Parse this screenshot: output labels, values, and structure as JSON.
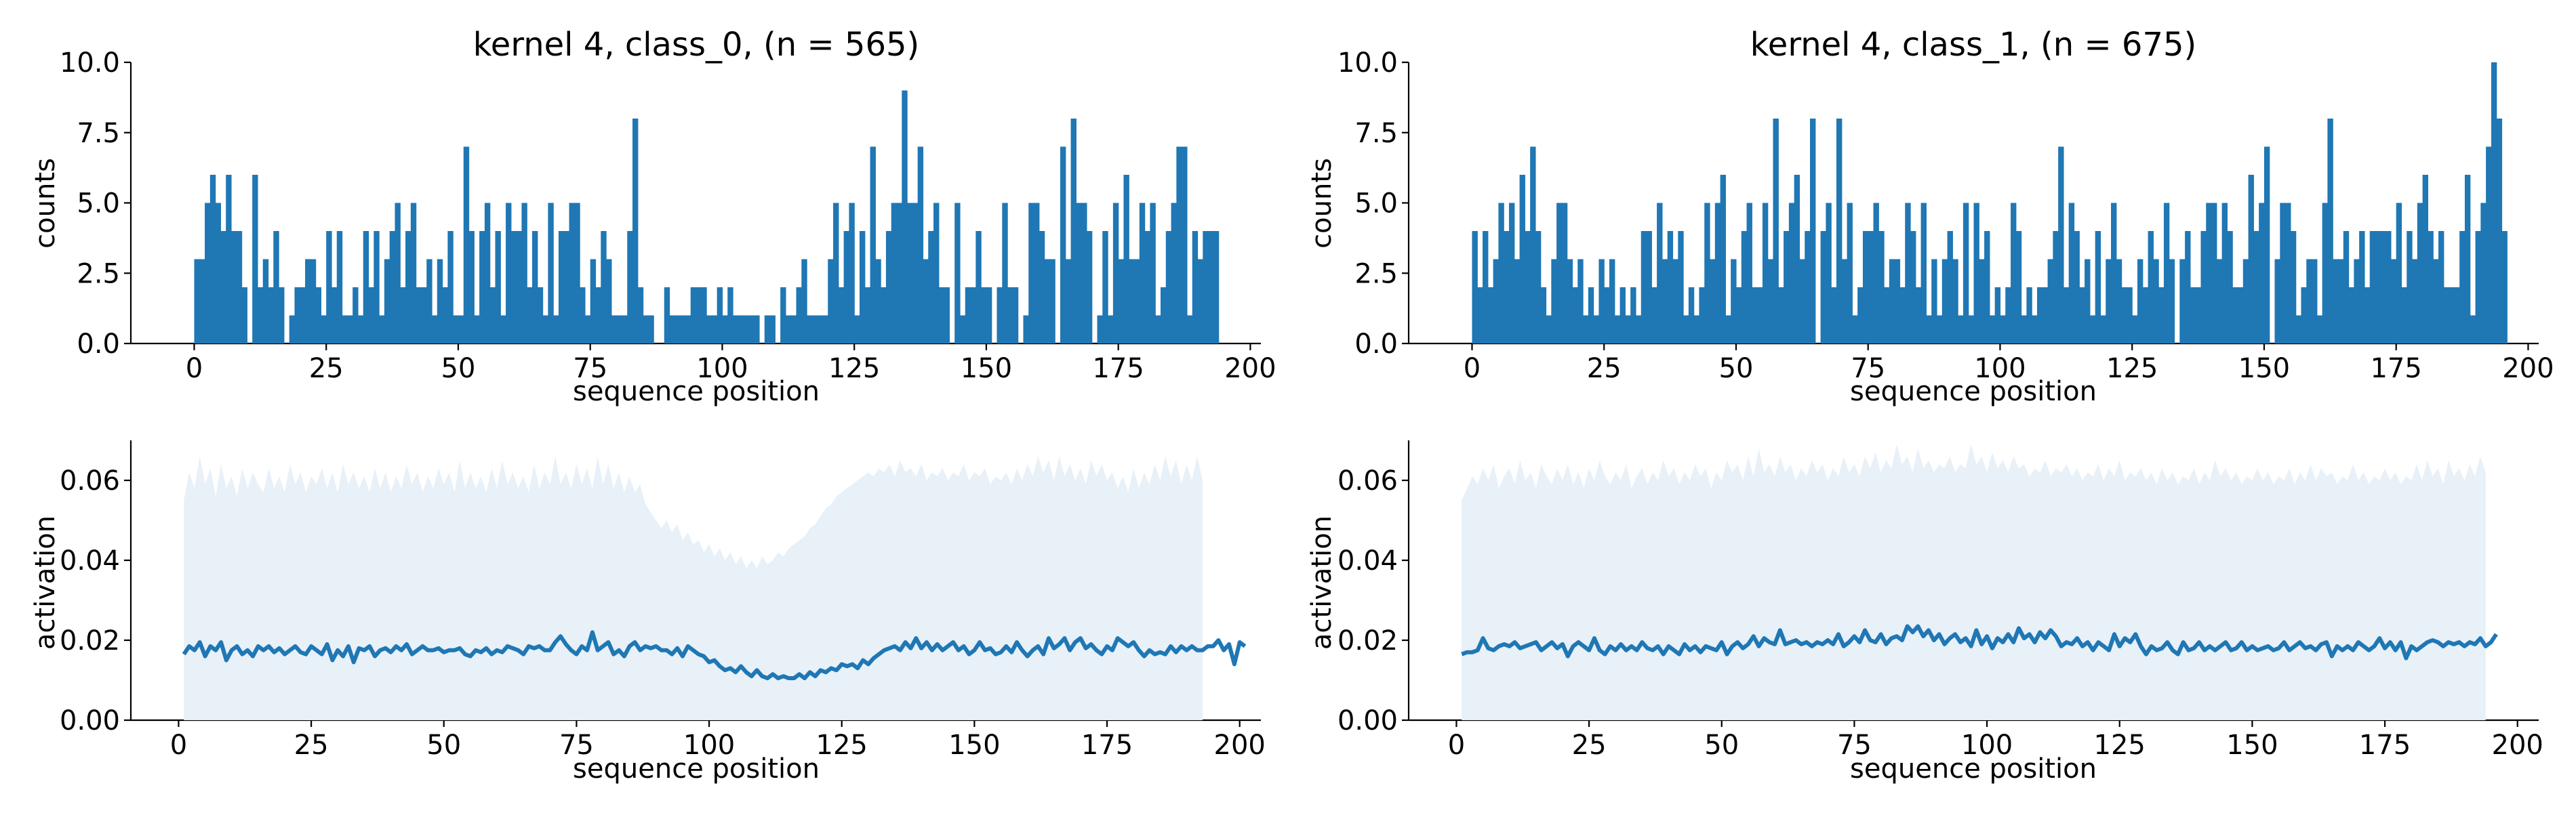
{
  "colors": {
    "bar": "#1f77b4",
    "line": "#1f77b4",
    "band": "#e8f0f8",
    "axis": "#000000"
  },
  "chart_data": [
    {
      "type": "bar",
      "title": "kernel 4, class_0, (n = 565)",
      "xlabel": "sequence position",
      "ylabel": "counts",
      "xlim": [
        -12,
        202
      ],
      "ylim": [
        0,
        10
      ],
      "xticks": [
        "0",
        "25",
        "50",
        "75",
        "100",
        "125",
        "150",
        "175",
        "200"
      ],
      "yticks": [
        "0.0",
        "2.5",
        "5.0",
        "7.5",
        "10.0"
      ],
      "x_start": 0,
      "values": [
        3,
        3,
        5,
        6,
        5,
        4,
        6,
        4,
        4,
        2,
        0,
        6,
        2,
        3,
        2,
        4,
        2,
        0,
        1,
        2,
        2,
        3,
        3,
        2,
        1,
        4,
        2,
        4,
        1,
        1,
        2,
        1,
        4,
        2,
        4,
        1,
        3,
        4,
        5,
        2,
        4,
        5,
        2,
        2,
        3,
        1,
        3,
        2,
        4,
        1,
        1,
        7,
        4,
        1,
        4,
        5,
        2,
        4,
        1,
        5,
        4,
        4,
        5,
        2,
        4,
        2,
        1,
        5,
        1,
        4,
        4,
        5,
        5,
        2,
        1,
        3,
        2,
        4,
        3,
        1,
        1,
        1,
        4,
        8,
        2,
        1,
        1,
        0,
        0,
        2,
        1,
        1,
        1,
        1,
        2,
        2,
        2,
        1,
        1,
        2,
        1,
        2,
        1,
        1,
        1,
        1,
        1,
        0,
        1,
        1,
        0,
        2,
        1,
        1,
        2,
        3,
        1,
        1,
        1,
        1,
        3,
        5,
        2,
        4,
        5,
        1,
        4,
        2,
        7,
        3,
        2,
        4,
        5,
        5,
        9,
        5,
        5,
        7,
        3,
        4,
        5,
        2,
        2,
        0,
        5,
        1,
        2,
        2,
        4,
        2,
        2,
        0,
        2,
        5,
        2,
        2,
        0,
        1,
        5,
        5,
        4,
        3,
        3,
        0,
        7,
        3,
        8,
        5,
        5,
        4,
        0,
        1,
        4,
        1,
        5,
        3,
        6,
        3,
        3,
        5,
        4,
        5,
        1,
        2,
        4,
        5,
        7,
        7,
        1,
        4,
        3,
        4,
        4,
        4
      ],
      "mean_activation": [
        0.0165,
        0.0185,
        0.0175,
        0.0195,
        0.016,
        0.0185,
        0.0175,
        0.0195,
        0.015,
        0.0175,
        0.0185,
        0.0165,
        0.0175,
        0.016,
        0.0185,
        0.0175,
        0.0185,
        0.017,
        0.018,
        0.0165,
        0.0175,
        0.0185,
        0.017,
        0.0165,
        0.0185,
        0.0175,
        0.0165,
        0.019,
        0.015,
        0.0175,
        0.016,
        0.0185,
        0.0145,
        0.018,
        0.0175,
        0.0185,
        0.016,
        0.0175,
        0.018,
        0.017,
        0.0185,
        0.0175,
        0.019,
        0.0165,
        0.0175,
        0.0185,
        0.0175,
        0.0175,
        0.018,
        0.017,
        0.0175,
        0.0175,
        0.018,
        0.0165,
        0.016,
        0.0175,
        0.017,
        0.018,
        0.0165,
        0.0175,
        0.017,
        0.0185,
        0.018,
        0.0175,
        0.0165,
        0.0185,
        0.018,
        0.0185,
        0.0175,
        0.0175,
        0.0195,
        0.021,
        0.019,
        0.0175,
        0.0165,
        0.0185,
        0.0175,
        0.022,
        0.0175,
        0.0185,
        0.0195,
        0.0165,
        0.0175,
        0.016,
        0.0185,
        0.0195,
        0.0175,
        0.0185,
        0.018,
        0.0185,
        0.0175,
        0.0175,
        0.0165,
        0.018,
        0.016,
        0.0185,
        0.0175,
        0.0165,
        0.016,
        0.0145,
        0.015,
        0.0135,
        0.0125,
        0.013,
        0.012,
        0.0135,
        0.012,
        0.011,
        0.0125,
        0.011,
        0.0105,
        0.0115,
        0.0105,
        0.011,
        0.0105,
        0.0105,
        0.0115,
        0.0105,
        0.012,
        0.011,
        0.0125,
        0.012,
        0.013,
        0.0125,
        0.014,
        0.0135,
        0.014,
        0.013,
        0.015,
        0.014,
        0.0155,
        0.0165,
        0.0175,
        0.018,
        0.0185,
        0.0175,
        0.0195,
        0.018,
        0.0205,
        0.018,
        0.0195,
        0.0175,
        0.019,
        0.0175,
        0.0185,
        0.0195,
        0.0175,
        0.0185,
        0.0165,
        0.0175,
        0.0195,
        0.0175,
        0.018,
        0.0165,
        0.017,
        0.0185,
        0.017,
        0.0195,
        0.0175,
        0.016,
        0.0175,
        0.0185,
        0.0165,
        0.0205,
        0.018,
        0.019,
        0.0205,
        0.0175,
        0.0195,
        0.0205,
        0.018,
        0.019,
        0.0175,
        0.0165,
        0.0185,
        0.0175,
        0.0205,
        0.0195,
        0.0185,
        0.0195,
        0.0175,
        0.016,
        0.0175,
        0.0165,
        0.017,
        0.0165,
        0.0185,
        0.017,
        0.0185,
        0.0175,
        0.0185,
        0.0175,
        0.0175,
        0.0185,
        0.0185,
        0.02,
        0.0175,
        0.019,
        0.014,
        0.0195,
        0.0185
      ],
      "upper_band": [
        0.055,
        0.062,
        0.058,
        0.066,
        0.059,
        0.063,
        0.056,
        0.064,
        0.058,
        0.061,
        0.056,
        0.063,
        0.058,
        0.062,
        0.059,
        0.057,
        0.063,
        0.058,
        0.061,
        0.057,
        0.064,
        0.059,
        0.062,
        0.057,
        0.061,
        0.059,
        0.063,
        0.058,
        0.062,
        0.057,
        0.064,
        0.059,
        0.062,
        0.058,
        0.061,
        0.057,
        0.063,
        0.058,
        0.062,
        0.057,
        0.061,
        0.058,
        0.064,
        0.059,
        0.062,
        0.057,
        0.061,
        0.058,
        0.063,
        0.059,
        0.062,
        0.057,
        0.065,
        0.058,
        0.062,
        0.058,
        0.061,
        0.057,
        0.063,
        0.058,
        0.065,
        0.059,
        0.062,
        0.058,
        0.061,
        0.057,
        0.064,
        0.058,
        0.062,
        0.059,
        0.066,
        0.059,
        0.062,
        0.058,
        0.064,
        0.059,
        0.063,
        0.058,
        0.066,
        0.059,
        0.064,
        0.058,
        0.062,
        0.057,
        0.061,
        0.057,
        0.059,
        0.054,
        0.052,
        0.05,
        0.048,
        0.05,
        0.047,
        0.049,
        0.045,
        0.047,
        0.044,
        0.045,
        0.042,
        0.044,
        0.041,
        0.043,
        0.04,
        0.042,
        0.039,
        0.041,
        0.038,
        0.04,
        0.038,
        0.041,
        0.039,
        0.04,
        0.042,
        0.041,
        0.043,
        0.044,
        0.045,
        0.046,
        0.048,
        0.049,
        0.051,
        0.053,
        0.054,
        0.056,
        0.057,
        0.058,
        0.059,
        0.06,
        0.061,
        0.062,
        0.061,
        0.063,
        0.062,
        0.064,
        0.061,
        0.065,
        0.062,
        0.063,
        0.061,
        0.064,
        0.06,
        0.062,
        0.061,
        0.063,
        0.06,
        0.062,
        0.061,
        0.064,
        0.06,
        0.062,
        0.061,
        0.063,
        0.059,
        0.061,
        0.06,
        0.062,
        0.059,
        0.063,
        0.06,
        0.064,
        0.061,
        0.066,
        0.062,
        0.065,
        0.06,
        0.066,
        0.061,
        0.064,
        0.06,
        0.063,
        0.059,
        0.065,
        0.061,
        0.064,
        0.06,
        0.062,
        0.058,
        0.061,
        0.057,
        0.063,
        0.058,
        0.062,
        0.059,
        0.064,
        0.06,
        0.066,
        0.061,
        0.065,
        0.059,
        0.064,
        0.06,
        0.066,
        0.06
      ],
      "activation_axis": {
        "ylabel": "activation",
        "xlabel": "sequence position",
        "xlim": [
          -9,
          204
        ],
        "ylim": [
          0,
          0.07
        ],
        "xticks": [
          "0",
          "25",
          "50",
          "75",
          "100",
          "125",
          "150",
          "175",
          "200"
        ],
        "yticks": [
          "0.00",
          "0.02",
          "0.04",
          "0.06"
        ],
        "x_start": 1
      }
    },
    {
      "type": "bar",
      "title": "kernel 4, class_1, (n = 675)",
      "xlabel": "sequence position",
      "ylabel": "counts",
      "xlim": [
        -12,
        202
      ],
      "ylim": [
        0,
        10
      ],
      "xticks": [
        "0",
        "25",
        "50",
        "75",
        "100",
        "125",
        "150",
        "175",
        "200"
      ],
      "yticks": [
        "0.0",
        "2.5",
        "5.0",
        "7.5",
        "10.0"
      ],
      "x_start": 0,
      "values": [
        4,
        2,
        4,
        2,
        3,
        5,
        4,
        5,
        3,
        6,
        4,
        7,
        4,
        2,
        1,
        3,
        5,
        5,
        3,
        2,
        3,
        1,
        2,
        1,
        3,
        2,
        3,
        1,
        2,
        1,
        2,
        1,
        4,
        4,
        2,
        5,
        3,
        4,
        3,
        4,
        1,
        2,
        1,
        2,
        5,
        3,
        5,
        6,
        1,
        3,
        2,
        4,
        5,
        2,
        2,
        5,
        3,
        8,
        2,
        4,
        5,
        6,
        3,
        4,
        8,
        0,
        4,
        5,
        2,
        8,
        3,
        5,
        1,
        2,
        4,
        4,
        5,
        4,
        2,
        3,
        3,
        2,
        5,
        4,
        2,
        5,
        1,
        3,
        1,
        3,
        4,
        3,
        1,
        5,
        1,
        5,
        3,
        4,
        1,
        2,
        1,
        2,
        5,
        4,
        1,
        2,
        1,
        2,
        2,
        3,
        4,
        7,
        2,
        5,
        4,
        2,
        3,
        1,
        4,
        1,
        3,
        5,
        3,
        2,
        2,
        1,
        3,
        2,
        4,
        3,
        2,
        5,
        3,
        0,
        3,
        4,
        2,
        2,
        4,
        5,
        5,
        3,
        5,
        4,
        2,
        2,
        3,
        6,
        4,
        5,
        7,
        0,
        3,
        5,
        5,
        4,
        1,
        2,
        3,
        3,
        1,
        5,
        8,
        3,
        3,
        4,
        2,
        3,
        4,
        2,
        4,
        4,
        4,
        4,
        3,
        5,
        2,
        4,
        3,
        5,
        6,
        4,
        3,
        4,
        2,
        2,
        2,
        4,
        6,
        1,
        4,
        5,
        7,
        10,
        8,
        4
      ],
      "mean_activation": [
        0.0165,
        0.017,
        0.017,
        0.0175,
        0.0205,
        0.018,
        0.0175,
        0.0185,
        0.019,
        0.0185,
        0.0195,
        0.018,
        0.0185,
        0.019,
        0.0195,
        0.0175,
        0.0185,
        0.0195,
        0.018,
        0.019,
        0.016,
        0.0185,
        0.0195,
        0.0185,
        0.0175,
        0.0205,
        0.0175,
        0.0165,
        0.0185,
        0.0175,
        0.019,
        0.0175,
        0.0185,
        0.0175,
        0.0195,
        0.018,
        0.0175,
        0.0185,
        0.0165,
        0.0185,
        0.0175,
        0.0165,
        0.019,
        0.0175,
        0.0185,
        0.017,
        0.0185,
        0.018,
        0.0175,
        0.0195,
        0.0165,
        0.0185,
        0.0195,
        0.018,
        0.019,
        0.021,
        0.0185,
        0.0205,
        0.0195,
        0.019,
        0.0225,
        0.019,
        0.0195,
        0.02,
        0.019,
        0.0195,
        0.0185,
        0.0195,
        0.019,
        0.02,
        0.019,
        0.0215,
        0.0185,
        0.0195,
        0.021,
        0.0195,
        0.0225,
        0.02,
        0.0195,
        0.0215,
        0.019,
        0.0205,
        0.021,
        0.02,
        0.0235,
        0.022,
        0.0235,
        0.021,
        0.0225,
        0.02,
        0.0215,
        0.019,
        0.0205,
        0.0215,
        0.0195,
        0.0205,
        0.0185,
        0.0225,
        0.019,
        0.021,
        0.018,
        0.0205,
        0.0195,
        0.0215,
        0.0195,
        0.023,
        0.0205,
        0.0215,
        0.0195,
        0.022,
        0.0205,
        0.0225,
        0.021,
        0.0185,
        0.0195,
        0.019,
        0.0205,
        0.0185,
        0.0195,
        0.0175,
        0.0195,
        0.0185,
        0.0175,
        0.0215,
        0.0185,
        0.0205,
        0.0195,
        0.0215,
        0.0185,
        0.0165,
        0.0185,
        0.0175,
        0.018,
        0.0195,
        0.0175,
        0.0165,
        0.0195,
        0.0175,
        0.018,
        0.0195,
        0.0175,
        0.0185,
        0.0175,
        0.0185,
        0.0195,
        0.0175,
        0.018,
        0.0195,
        0.0175,
        0.0185,
        0.0175,
        0.018,
        0.0185,
        0.0175,
        0.018,
        0.0195,
        0.0175,
        0.0185,
        0.0195,
        0.018,
        0.0185,
        0.0175,
        0.019,
        0.0195,
        0.016,
        0.0185,
        0.0175,
        0.0185,
        0.0175,
        0.0195,
        0.0185,
        0.0175,
        0.0185,
        0.0205,
        0.018,
        0.0195,
        0.0175,
        0.0195,
        0.0155,
        0.0185,
        0.0175,
        0.0185,
        0.0195,
        0.02,
        0.0195,
        0.0185,
        0.0195,
        0.019,
        0.0195,
        0.0185,
        0.0195,
        0.019,
        0.0205,
        0.0185,
        0.0195,
        0.0215
      ],
      "upper_band": [
        0.055,
        0.058,
        0.061,
        0.059,
        0.063,
        0.06,
        0.064,
        0.058,
        0.061,
        0.063,
        0.059,
        0.065,
        0.06,
        0.062,
        0.058,
        0.064,
        0.061,
        0.059,
        0.063,
        0.06,
        0.064,
        0.059,
        0.062,
        0.058,
        0.063,
        0.06,
        0.065,
        0.061,
        0.059,
        0.062,
        0.06,
        0.064,
        0.058,
        0.061,
        0.063,
        0.059,
        0.062,
        0.06,
        0.065,
        0.061,
        0.063,
        0.059,
        0.062,
        0.06,
        0.064,
        0.061,
        0.063,
        0.058,
        0.062,
        0.06,
        0.065,
        0.062,
        0.064,
        0.06,
        0.066,
        0.061,
        0.068,
        0.062,
        0.064,
        0.061,
        0.066,
        0.062,
        0.064,
        0.06,
        0.063,
        0.061,
        0.065,
        0.062,
        0.064,
        0.06,
        0.063,
        0.061,
        0.066,
        0.062,
        0.064,
        0.061,
        0.066,
        0.063,
        0.067,
        0.062,
        0.065,
        0.063,
        0.069,
        0.064,
        0.066,
        0.062,
        0.068,
        0.063,
        0.065,
        0.062,
        0.064,
        0.063,
        0.066,
        0.062,
        0.064,
        0.063,
        0.069,
        0.064,
        0.066,
        0.062,
        0.067,
        0.063,
        0.065,
        0.062,
        0.066,
        0.063,
        0.064,
        0.061,
        0.063,
        0.062,
        0.065,
        0.061,
        0.063,
        0.062,
        0.064,
        0.061,
        0.063,
        0.06,
        0.062,
        0.061,
        0.064,
        0.06,
        0.063,
        0.061,
        0.065,
        0.06,
        0.062,
        0.061,
        0.063,
        0.06,
        0.062,
        0.059,
        0.063,
        0.06,
        0.062,
        0.059,
        0.061,
        0.06,
        0.063,
        0.059,
        0.062,
        0.06,
        0.065,
        0.061,
        0.063,
        0.06,
        0.062,
        0.059,
        0.061,
        0.06,
        0.063,
        0.06,
        0.062,
        0.059,
        0.061,
        0.06,
        0.063,
        0.059,
        0.062,
        0.06,
        0.064,
        0.06,
        0.063,
        0.061,
        0.062,
        0.059,
        0.061,
        0.06,
        0.064,
        0.06,
        0.062,
        0.059,
        0.061,
        0.06,
        0.063,
        0.06,
        0.062,
        0.059,
        0.061,
        0.06,
        0.064,
        0.06,
        0.065,
        0.061,
        0.063,
        0.059,
        0.065,
        0.061,
        0.063,
        0.06,
        0.064,
        0.061,
        0.066,
        0.062
      ],
      "activation_axis": {
        "ylabel": "activation",
        "xlabel": "sequence position",
        "xlim": [
          -9,
          204
        ],
        "ylim": [
          0,
          0.07
        ],
        "xticks": [
          "0",
          "25",
          "50",
          "75",
          "100",
          "125",
          "150",
          "175",
          "200"
        ],
        "yticks": [
          "0.00",
          "0.02",
          "0.04",
          "0.06"
        ],
        "x_start": 1
      }
    }
  ]
}
